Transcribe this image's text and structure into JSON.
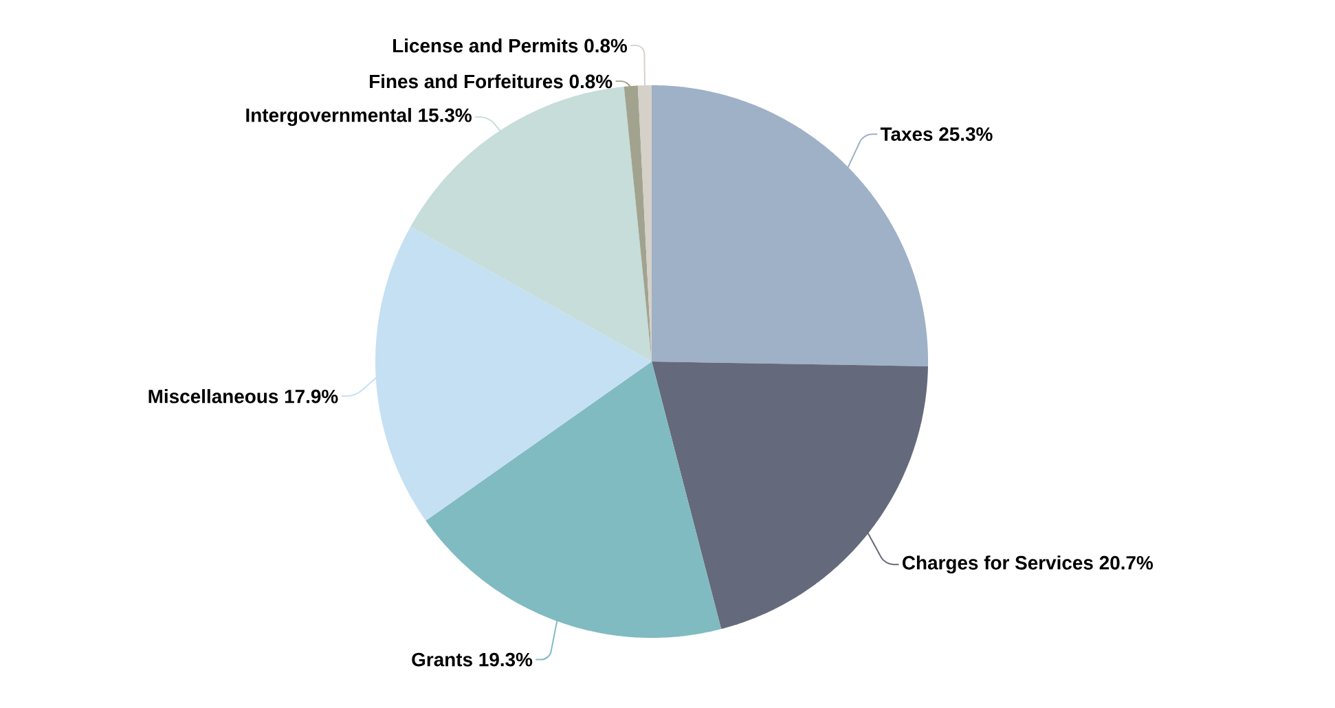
{
  "chart_data": {
    "type": "pie",
    "categories": [
      "Taxes",
      "Charges for Services",
      "Grants",
      "Miscellaneous",
      "Intergovernmental",
      "Fines and Forfeitures",
      "License and Permits"
    ],
    "values": [
      25.3,
      20.7,
      19.3,
      17.9,
      15.3,
      0.8,
      0.8
    ],
    "colors": [
      "#9fb1c7",
      "#65697c",
      "#80bbc1",
      "#c5e0f3",
      "#c6ddda",
      "#a1a38f",
      "#d5d0c8"
    ],
    "value_labels": [
      "25.3%",
      "20.7%",
      "19.3%",
      "17.9%",
      "15.3%",
      "0.8%",
      "0.8%"
    ]
  }
}
